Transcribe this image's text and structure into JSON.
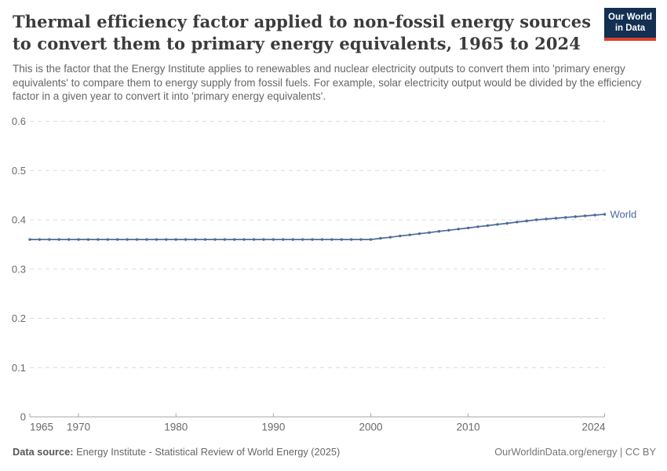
{
  "header": {
    "title_line1": "Thermal efficiency factor applied to non-fossil energy sources",
    "title_line2": "to convert them to primary energy equivalents, 1965 to 2024",
    "logo": {
      "line1": "Our World",
      "line2": "in Data"
    }
  },
  "subtitle": "This is the factor that the Energy Institute applies to renewables and nuclear electricity outputs to convert them into 'primary energy equivalents' to compare them to energy supply from fossil fuels. For example, solar electricity output would be divided by the efficiency factor in a given year to convert it into 'primary energy equivalents'.",
  "footer": {
    "source_label": "Data source:",
    "source_text": " Energy Institute - Statistical Review of World Energy (2025)",
    "credit": "OurWorldinData.org/energy | CC BY"
  },
  "colors": {
    "series_blue": "#4C6A9C",
    "title_text": "#3B3B3B",
    "subtitle_text": "#666666",
    "grid": "#DBDBDB",
    "axis": "#A5A5A5",
    "logo_navy": "#132F52",
    "logo_red": "#DC402F"
  },
  "chart_data": {
    "type": "line",
    "title": "Thermal efficiency factor applied to non-fossil energy sources to convert them to primary energy equivalents, 1965 to 2024",
    "xlabel": "",
    "ylabel": "",
    "ylim": [
      0,
      0.6
    ],
    "yticks": [
      0,
      0.1,
      0.2,
      0.3,
      0.4,
      0.5,
      0.6
    ],
    "xticks": [
      1965,
      1970,
      1980,
      1990,
      2000,
      2010,
      2024
    ],
    "grid": "dashed-horizontal",
    "legend_position": "end-of-line",
    "x": [
      1965,
      1966,
      1967,
      1968,
      1969,
      1970,
      1971,
      1972,
      1973,
      1974,
      1975,
      1976,
      1977,
      1978,
      1979,
      1980,
      1981,
      1982,
      1983,
      1984,
      1985,
      1986,
      1987,
      1988,
      1989,
      1990,
      1991,
      1992,
      1993,
      1994,
      1995,
      1996,
      1997,
      1998,
      1999,
      2000,
      2001,
      2002,
      2003,
      2004,
      2005,
      2006,
      2007,
      2008,
      2009,
      2010,
      2011,
      2012,
      2013,
      2014,
      2015,
      2016,
      2017,
      2018,
      2019,
      2020,
      2021,
      2022,
      2023,
      2024
    ],
    "series": [
      {
        "name": "World",
        "color": "#4C6A9C",
        "values": [
          0.36,
          0.36,
          0.36,
          0.36,
          0.36,
          0.36,
          0.36,
          0.36,
          0.36,
          0.36,
          0.36,
          0.36,
          0.36,
          0.36,
          0.36,
          0.36,
          0.36,
          0.36,
          0.36,
          0.36,
          0.36,
          0.36,
          0.36,
          0.36,
          0.36,
          0.36,
          0.36,
          0.36,
          0.36,
          0.36,
          0.36,
          0.36,
          0.36,
          0.36,
          0.36,
          0.36,
          0.3624,
          0.3647,
          0.3671,
          0.3694,
          0.3718,
          0.3741,
          0.3765,
          0.3788,
          0.3812,
          0.3835,
          0.3859,
          0.3882,
          0.3906,
          0.3929,
          0.3953,
          0.3976,
          0.4,
          0.4016,
          0.4032,
          0.4048,
          0.4064,
          0.408,
          0.4096,
          0.4112
        ]
      }
    ]
  }
}
